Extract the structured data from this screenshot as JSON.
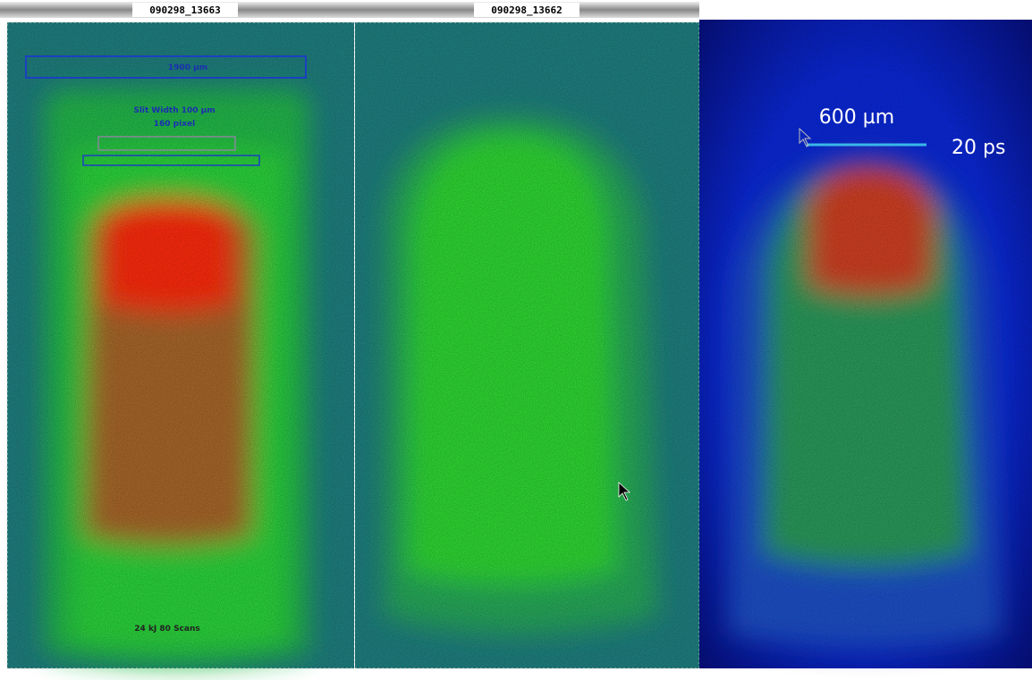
{
  "windows": [
    {
      "title": "090298_13663",
      "labels": {
        "scale": "1900 µm",
        "slit": "Slit Width 100 µm",
        "pixel": "160 pixel",
        "energy": "24 kJ 80 Scans"
      }
    },
    {
      "title": "090298_13662"
    }
  ],
  "overlay": {
    "scale": "600 µm",
    "time": "20 ps"
  }
}
